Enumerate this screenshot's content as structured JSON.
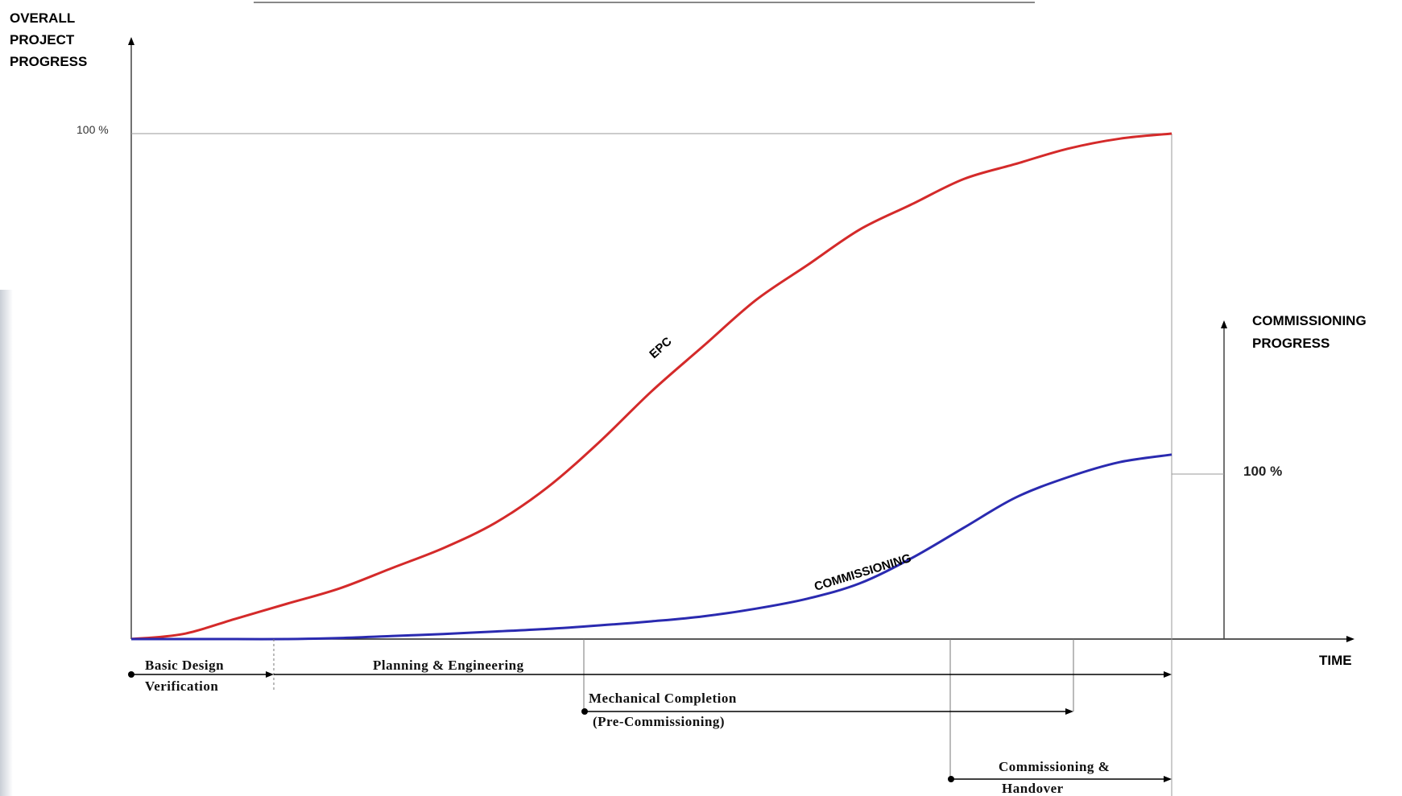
{
  "chart_data": {
    "type": "line",
    "y_axis_left_label": [
      "OVERALL",
      "PROJECT",
      "PROGRESS"
    ],
    "y_axis_right_label": [
      "COMMISSIONING",
      "PROGRESS"
    ],
    "x_axis_label": "TIME",
    "left_max_label": "100 %",
    "right_max_label": "100 %",
    "x": [
      0,
      5,
      10,
      15,
      20,
      25,
      30,
      35,
      40,
      45,
      50,
      55,
      60,
      65,
      70,
      75,
      80,
      85,
      90,
      95,
      100
    ],
    "series": [
      {
        "name": "EPC",
        "color": "#d42a2a",
        "values": [
          0,
          1,
          4,
          7,
          10,
          14,
          18,
          23,
          30,
          39,
          49,
          58,
          67,
          74,
          81,
          86,
          91,
          94,
          97,
          99,
          100
        ]
      },
      {
        "name": "COMMISSIONING",
        "color": "#2a2ab0",
        "values": [
          0,
          0,
          0,
          0,
          0.2,
          0.6,
          1,
          1.5,
          2,
          2.7,
          3.5,
          4.5,
          6,
          8,
          11,
          16,
          22,
          28,
          32,
          35,
          36.5
        ]
      }
    ],
    "phases": [
      {
        "label": "Basic Design",
        "label2": "Verification",
        "start": 0,
        "end": 13.5
      },
      {
        "label": "Planning & Engineering",
        "label2": "",
        "start": 13.5,
        "end": 100
      },
      {
        "label": "Mechanical Completion",
        "label2": "(Pre-Commissioning)",
        "start": 43.5,
        "end": 90.5
      },
      {
        "label": "Commissioning &",
        "label2": "Handover",
        "start": 79,
        "end": 100
      }
    ]
  }
}
